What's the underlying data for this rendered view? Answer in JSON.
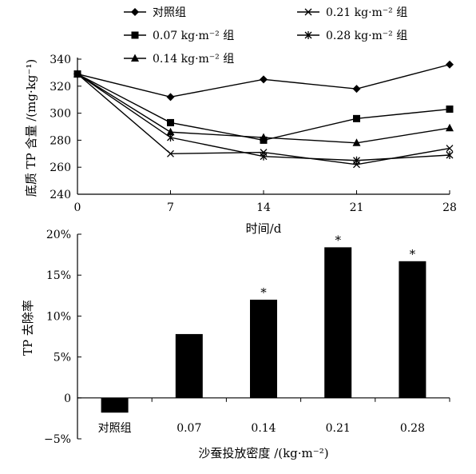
{
  "chart_data": [
    {
      "type": "line",
      "ylabel": "底质 TP 含量 /(mg·kg⁻¹)",
      "xlabel": "时间/d",
      "x": [
        0,
        7,
        14,
        21,
        28
      ],
      "xticks": [
        "0",
        "7",
        "14",
        "21",
        "28"
      ],
      "ylim": [
        240,
        340
      ],
      "yticks": [
        "240",
        "260",
        "280",
        "300",
        "320",
        "340"
      ],
      "legend_position": "top",
      "series": [
        {
          "name": "对照组",
          "marker": "diamond",
          "values": [
            329,
            312,
            325,
            318,
            336
          ]
        },
        {
          "name": "0.07 kg·m⁻² 组",
          "marker": "square",
          "values": [
            329,
            293,
            280,
            296,
            303
          ]
        },
        {
          "name": "0.14 kg·m⁻² 组",
          "marker": "triangle",
          "values": [
            329,
            286,
            282,
            278,
            289
          ]
        },
        {
          "name": "0.21 kg·m⁻² 组",
          "marker": "x",
          "values": [
            329,
            270,
            271,
            262,
            274
          ]
        },
        {
          "name": "0.28 kg·m⁻² 组",
          "marker": "asterisk",
          "values": [
            329,
            282,
            268,
            265,
            269
          ]
        }
      ]
    },
    {
      "type": "bar",
      "ylabel": "TP 去除率",
      "xlabel": "沙蚕投放密度 /(kg·m⁻²)",
      "categories": [
        "对照组",
        "0.07",
        "0.14",
        "0.21",
        "0.28"
      ],
      "values": [
        -1.8,
        7.8,
        12.0,
        18.4,
        16.7
      ],
      "annotations": [
        "",
        "",
        "*",
        "*",
        "*"
      ],
      "ylim": [
        -5,
        20
      ],
      "yticks": [
        "−5%",
        "0",
        "5%",
        "10%",
        "15%",
        "20%"
      ],
      "bar_color": "#000000"
    }
  ]
}
